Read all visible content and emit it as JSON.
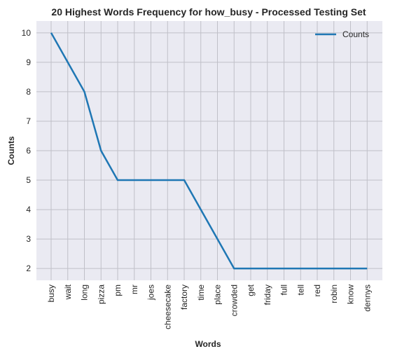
{
  "chart_data": {
    "type": "line",
    "title": "20 Highest Words Frequency for how_busy - Processed Testing Set",
    "xlabel": "Words",
    "ylabel": "Counts",
    "categories": [
      "busy",
      "wait",
      "long",
      "pizza",
      "pm",
      "mr",
      "joes",
      "cheesecake",
      "factory",
      "time",
      "place",
      "crowded",
      "get",
      "friday",
      "full",
      "tell",
      "red",
      "robin",
      "know",
      "dennys"
    ],
    "series": [
      {
        "name": "Counts",
        "values": [
          10,
          9,
          8,
          6,
          5,
          5,
          5,
          5,
          5,
          4,
          3,
          2,
          2,
          2,
          2,
          2,
          2,
          2,
          2,
          2
        ],
        "color": "#1f77b4"
      }
    ],
    "ylim": [
      1.6,
      10.4
    ],
    "yticks": [
      2,
      3,
      4,
      5,
      6,
      7,
      8,
      9,
      10
    ],
    "grid": true,
    "legend_position": "top-right",
    "colors": {
      "plot_background": "#eaeaf2",
      "grid": "#c0c0c8"
    }
  }
}
